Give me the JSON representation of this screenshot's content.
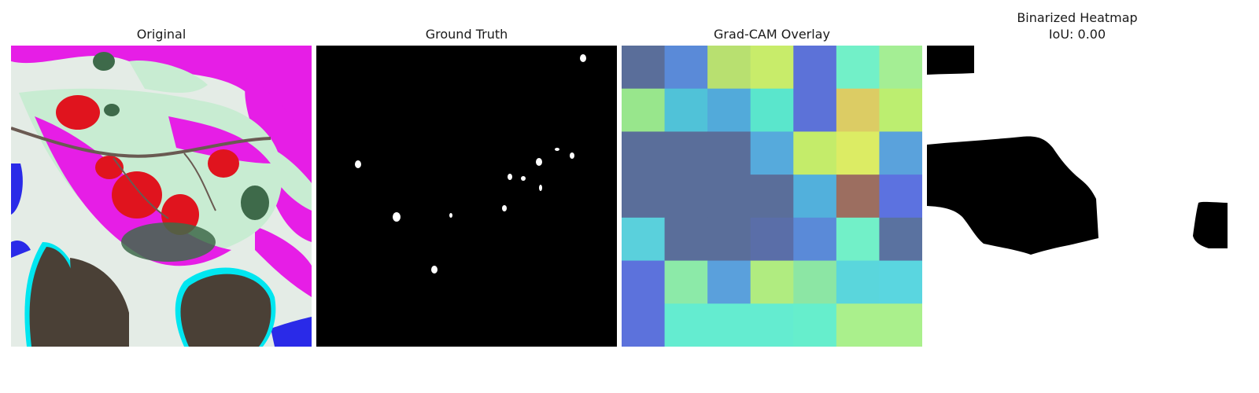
{
  "panels": [
    {
      "title_lines": [
        "Original"
      ]
    },
    {
      "title_lines": [
        "Ground Truth"
      ]
    },
    {
      "title_lines": [
        "Grad-CAM Overlay"
      ]
    },
    {
      "title_lines": [
        "Binarized Heatmap",
        "IoU: 0.00"
      ]
    }
  ],
  "colors": {
    "background": "#ffffff",
    "mask_foreground": "#ffffff",
    "mask_background": "#000000",
    "leaf_magenta": "#e61ee6",
    "leaf_pale_green": "#c8ecd2",
    "leaf_red": "#e0141e",
    "shadow_brown": "#4a4036",
    "cyan_edge": "#00e6f0",
    "blue_patch": "#2a2ae8"
  },
  "gradcam_grid": [
    [
      "#5a6e9a",
      "#5a8ad8",
      "#b8e070",
      "#c8ec6a",
      "#5c72d8",
      "#72f0c8",
      "#a4ee94"
    ],
    [
      "#98e68c",
      "#50c2d8",
      "#52aada",
      "#5ae6cc",
      "#5c72d8",
      "#dccc64",
      "#bcee70"
    ],
    [
      "#5a6e9a",
      "#5a6e9a",
      "#5a6e9a",
      "#56aadc",
      "#c4ec6a",
      "#dcec64",
      "#5aa2dc"
    ],
    [
      "#5a6e9a",
      "#5a6e9a",
      "#5a6e9a",
      "#5a6e9a",
      "#52b0dc",
      "#9c6e60",
      "#5c72e0"
    ],
    [
      "#5ad0dc",
      "#5a6e9a",
      "#5a6e9a",
      "#5a6ea8",
      "#5a8ad8",
      "#72f0c8",
      "#5a72a0"
    ],
    [
      "#5c72dc",
      "#8ceaa8",
      "#5aa0dc",
      "#b0ec80",
      "#8ce6a4",
      "#5ad6dc",
      "#5ad6e0"
    ],
    [
      "#5c72dc",
      "#64ecd0",
      "#64ecd0",
      "#64ecd0",
      "#66eecc",
      "#aaf08c",
      "#aaf08c"
    ]
  ]
}
